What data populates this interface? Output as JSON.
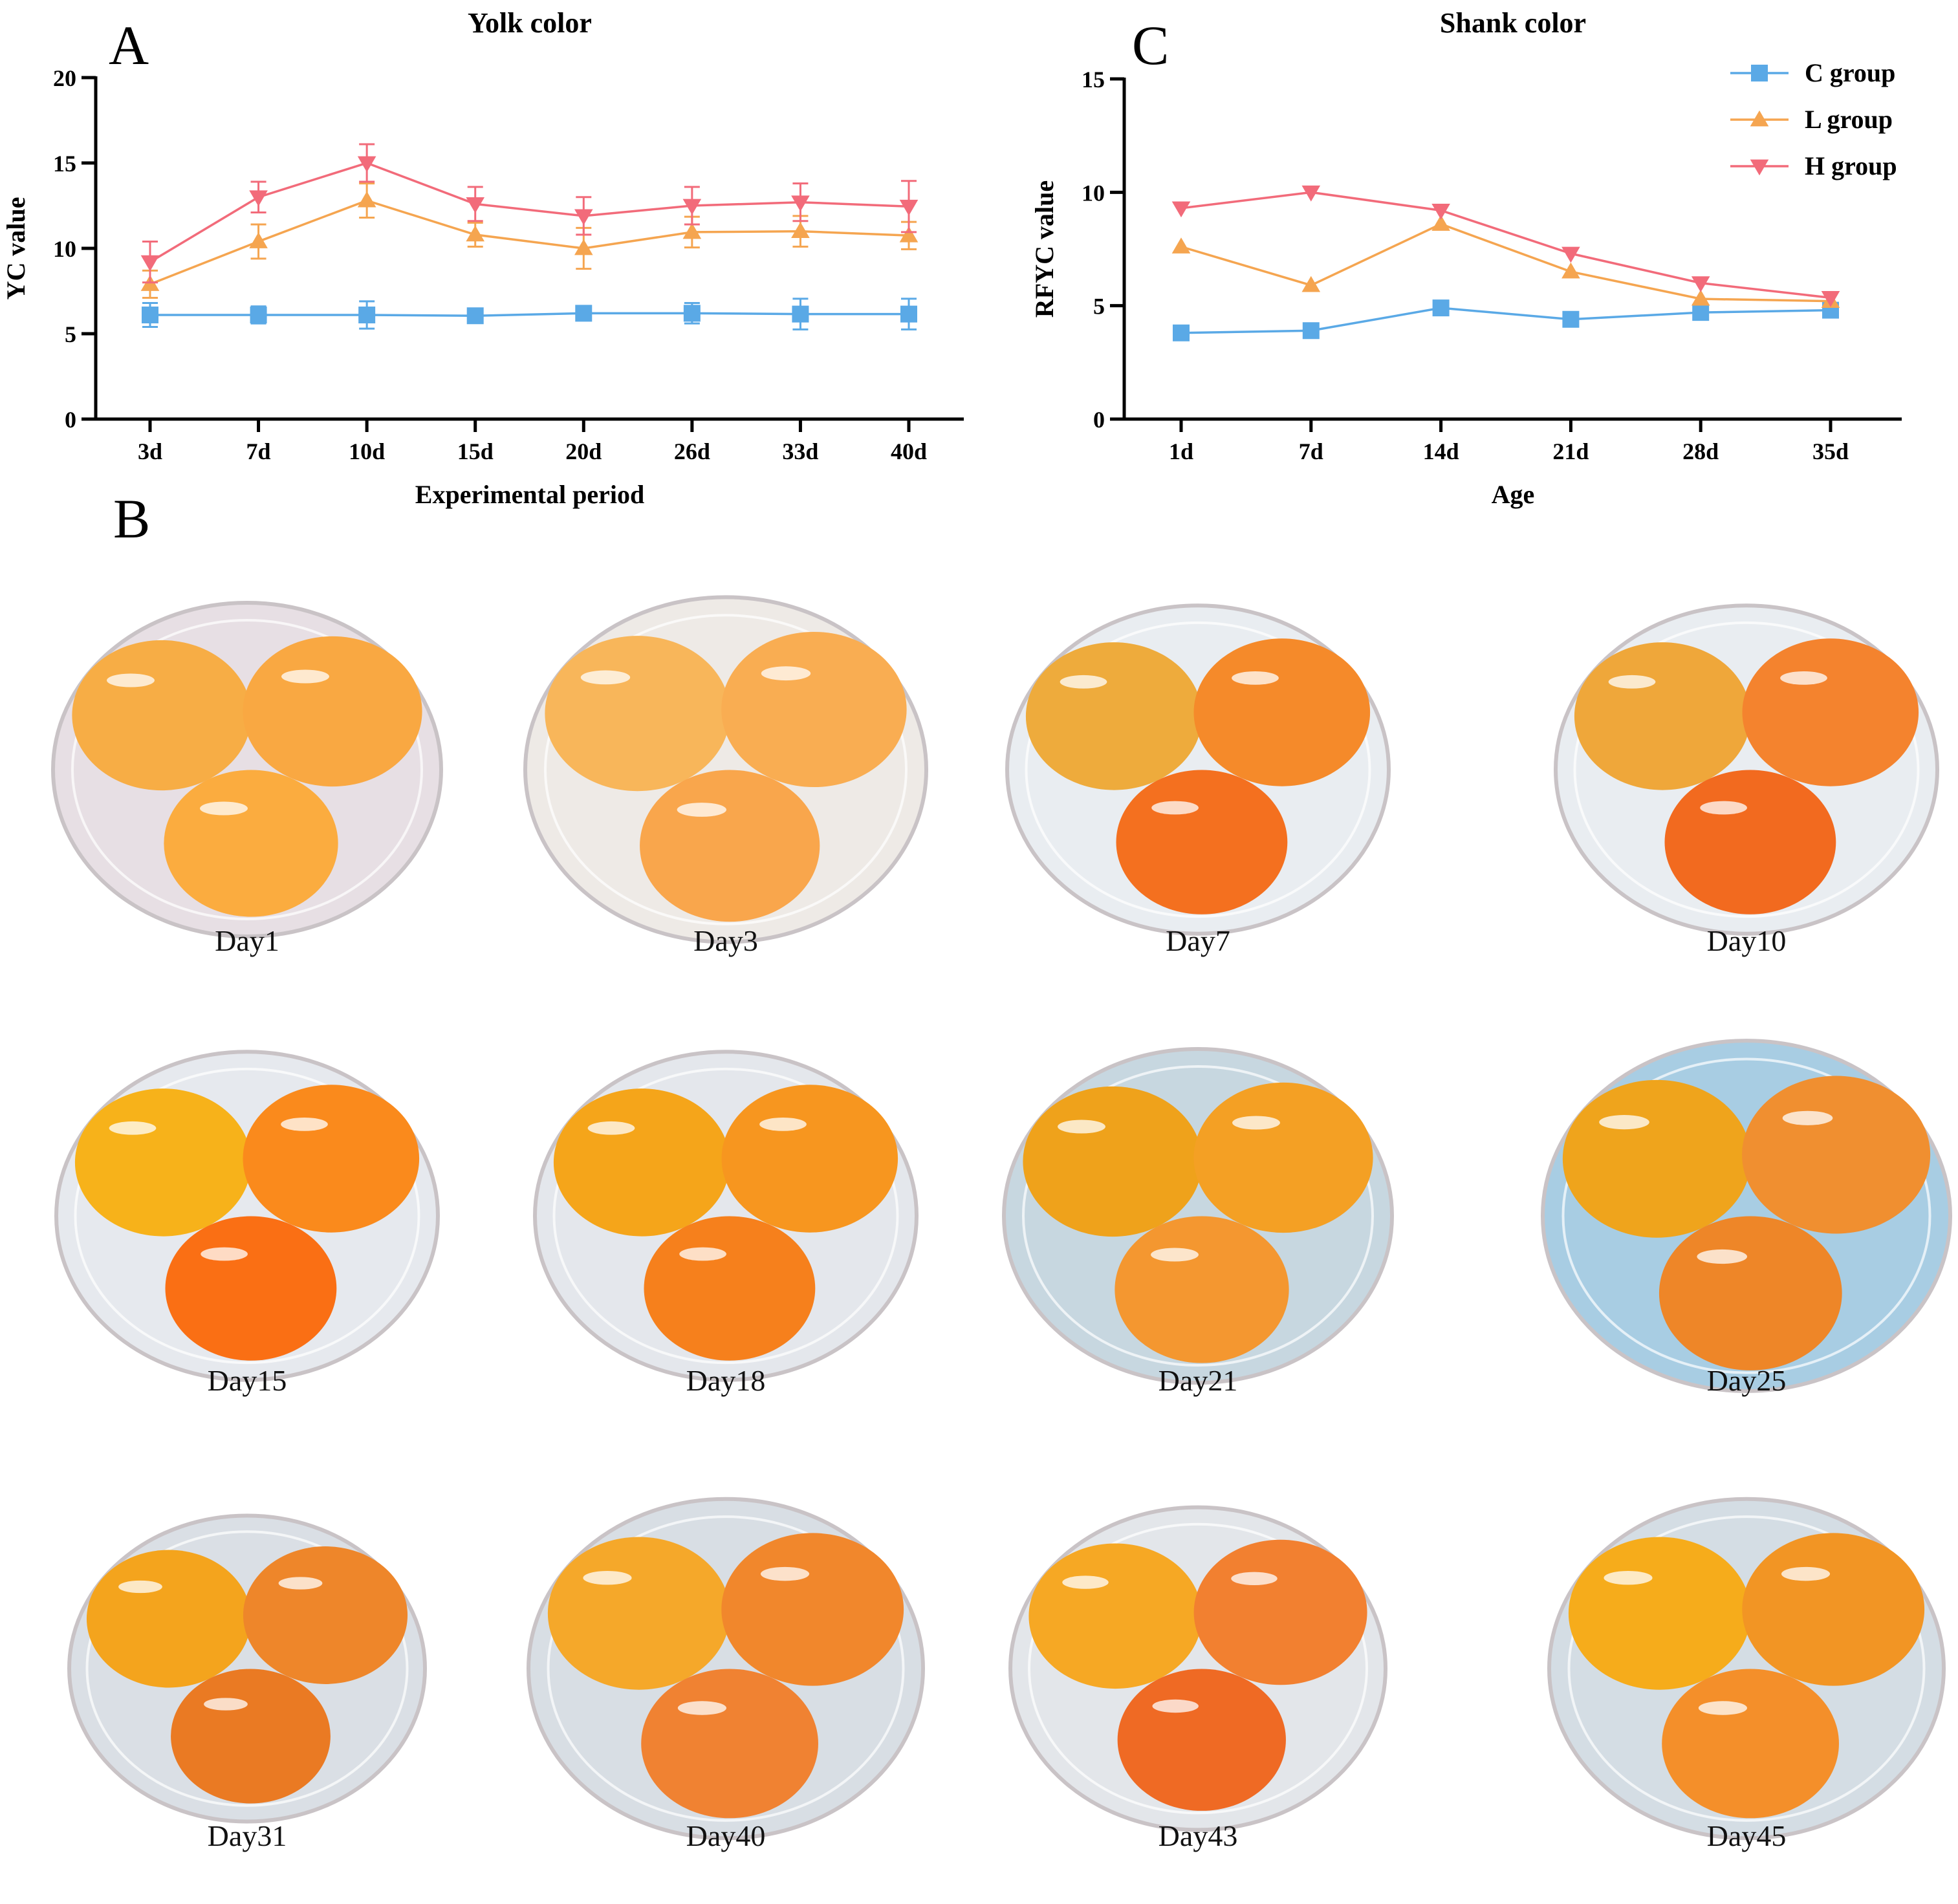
{
  "panels": {
    "a": "A",
    "b": "B",
    "c": "C"
  },
  "chart_data": [
    {
      "type": "line",
      "title": "Yolk color",
      "xlabel": "Experimental period",
      "ylabel": "YC value",
      "ylim": [
        0,
        20
      ],
      "yticks": [
        0,
        5,
        10,
        15,
        20
      ],
      "categories": [
        "3d",
        "7d",
        "10d",
        "15d",
        "20d",
        "26d",
        "33d",
        "40d"
      ],
      "series": [
        {
          "name": "C group",
          "marker": "square",
          "color": "#5aa9e6",
          "values": [
            6.1,
            6.1,
            6.1,
            6.05,
            6.2,
            6.2,
            6.15,
            6.15
          ],
          "errors": [
            0.7,
            0.5,
            0.8,
            0.3,
            0.3,
            0.6,
            0.9,
            0.9
          ]
        },
        {
          "name": "L group",
          "marker": "triangle-up",
          "color": "#f5a550",
          "values": [
            7.9,
            10.4,
            12.8,
            10.8,
            10.0,
            10.95,
            11.0,
            10.75
          ],
          "errors": [
            0.8,
            1.0,
            1.0,
            0.7,
            1.2,
            0.9,
            0.9,
            0.8
          ]
        },
        {
          "name": "H group",
          "marker": "triangle-down",
          "color": "#f26b7a",
          "values": [
            9.2,
            13.0,
            15.0,
            12.6,
            11.9,
            12.5,
            12.7,
            12.45
          ],
          "errors": [
            1.2,
            0.9,
            1.1,
            1.0,
            1.1,
            1.1,
            1.1,
            1.5
          ]
        }
      ]
    },
    {
      "type": "line",
      "title": "Shank color",
      "xlabel": "Age",
      "ylabel": "RFYC value",
      "ylim": [
        0,
        15
      ],
      "yticks": [
        0,
        5,
        10,
        15
      ],
      "categories": [
        "1d",
        "7d",
        "14d",
        "21d",
        "28d",
        "35d"
      ],
      "legend_position": "top-right",
      "series": [
        {
          "name": "C group",
          "marker": "square",
          "color": "#5aa9e6",
          "values": [
            3.8,
            3.9,
            4.9,
            4.4,
            4.7,
            4.8
          ]
        },
        {
          "name": "L group",
          "marker": "triangle-up",
          "color": "#f5a550",
          "values": [
            7.6,
            5.9,
            8.6,
            6.5,
            5.3,
            5.2
          ]
        },
        {
          "name": "H group",
          "marker": "triangle-down",
          "color": "#f26b7a",
          "values": [
            9.3,
            10.0,
            9.2,
            7.3,
            6.0,
            5.35
          ]
        }
      ]
    }
  ],
  "photos": [
    {
      "label": "Day1"
    },
    {
      "label": "Day3"
    },
    {
      "label": "Day7"
    },
    {
      "label": "Day10"
    },
    {
      "label": "Day15"
    },
    {
      "label": "Day18"
    },
    {
      "label": "Day21"
    },
    {
      "label": "Day25"
    },
    {
      "label": "Day31"
    },
    {
      "label": "Day40"
    },
    {
      "label": "Day43"
    },
    {
      "label": "Day45"
    }
  ]
}
